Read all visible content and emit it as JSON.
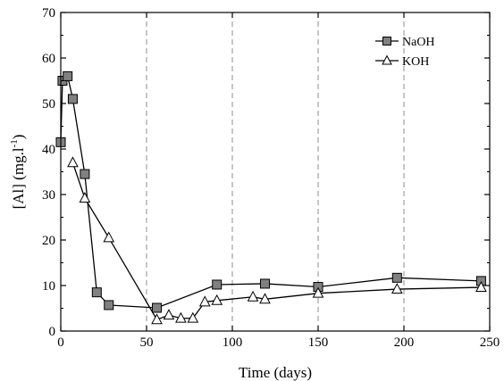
{
  "chart_data": {
    "type": "line",
    "title": "",
    "xlabel": "Time (days)",
    "ylabel_main": "[Al] (mg.l",
    "ylabel_sup": "-1",
    "ylabel_close": ")",
    "xlim": [
      0,
      250
    ],
    "ylim": [
      0,
      70
    ],
    "xticks": [
      0,
      50,
      100,
      150,
      200,
      250
    ],
    "yticks": [
      0,
      10,
      20,
      30,
      40,
      50,
      60,
      70
    ],
    "xtick_labels": [
      "0",
      "50",
      "100",
      "150",
      "200",
      "250"
    ],
    "ytick_labels": [
      "0",
      "10",
      "20",
      "30",
      "40",
      "50",
      "60",
      "70"
    ],
    "vertical_gridlines": [
      50,
      100,
      150,
      200
    ],
    "grid": "vertical dashed",
    "legend_position": "top-right",
    "series": [
      {
        "name": "NaOH",
        "marker": "square",
        "color": "#808080",
        "x": [
          0,
          1,
          4,
          7,
          14,
          21,
          28,
          56,
          91,
          119,
          150,
          196,
          245
        ],
        "y": [
          41.5,
          55,
          56,
          51,
          34.5,
          8.5,
          5.7,
          5.1,
          10.2,
          10.4,
          9.7,
          11.7,
          11
        ]
      },
      {
        "name": "KOH",
        "marker": "triangle",
        "color": "#ffffff",
        "x": [
          7,
          14,
          28,
          56,
          63,
          70,
          77,
          84,
          91,
          112,
          119,
          150,
          196,
          245
        ],
        "y": [
          37,
          29.2,
          20.5,
          2.5,
          3.5,
          2.8,
          2.8,
          6.4,
          6.7,
          7.5,
          7,
          8.3,
          9.2,
          9.6
        ]
      }
    ]
  }
}
